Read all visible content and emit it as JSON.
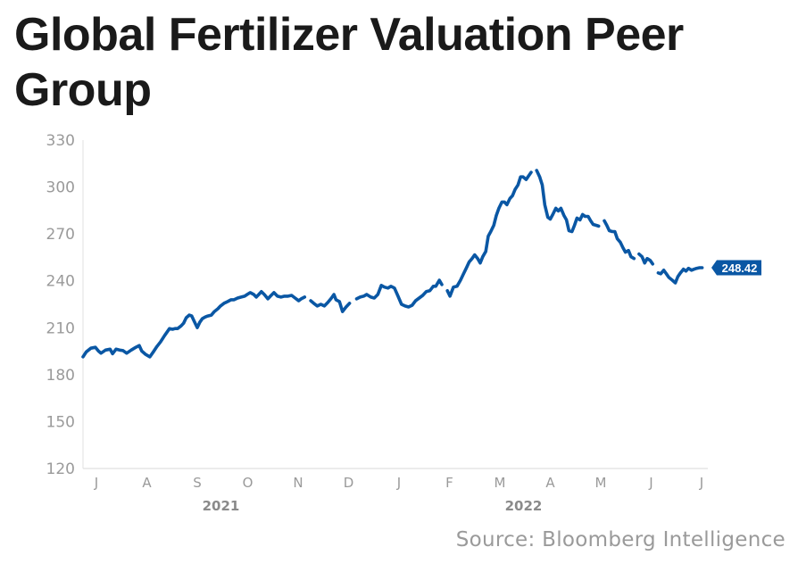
{
  "title": "Global Fertilizer Valuation Peer Group",
  "source": "Source: Bloomberg Intelligence",
  "colors": {
    "line": "#0a57a4",
    "axis": "#e0e0e0",
    "tick_text": "#9a9a9a",
    "title": "#1a1a1a"
  },
  "chart_data": {
    "type": "line",
    "title": "Global Fertilizer Valuation Peer Group",
    "xlabel": "",
    "ylabel": "",
    "ylim": [
      120,
      330
    ],
    "yticks": [
      120,
      150,
      180,
      210,
      240,
      270,
      300,
      330
    ],
    "x_tick_labels": [
      "J",
      "A",
      "S",
      "O",
      "N",
      "D",
      "J",
      "F",
      "M",
      "A",
      "M",
      "J",
      "J"
    ],
    "x_year_labels": [
      {
        "label": "2021",
        "under_tick_index": 3
      },
      {
        "label": "2022",
        "under_tick_index": 9
      }
    ],
    "grid": false,
    "last_value_label": "248.42",
    "last_value": 248.42,
    "x_range_months": [
      0,
      12.5
    ],
    "series": [
      {
        "name": "Global Fertilizer Valuation Peer Group",
        "x_month_index": [
          -0.27,
          -0.2,
          -0.11,
          -0.02,
          0.04,
          0.09,
          0.18,
          0.27,
          0.32,
          0.39,
          0.46,
          0.53,
          0.6,
          0.69,
          0.78,
          0.85,
          0.9,
          0.97,
          1.06,
          1.13,
          1.2,
          1.27,
          1.35,
          1.4,
          1.45,
          1.51,
          1.56,
          1.61,
          1.68,
          1.73,
          1.78,
          1.84,
          1.89,
          1.94,
          2.0,
          2.05,
          2.1,
          2.16,
          2.21,
          2.28,
          2.34,
          2.41,
          2.46,
          2.53,
          2.6,
          2.67,
          2.73,
          2.8,
          2.87,
          2.94,
          2.99,
          3.05,
          3.12,
          3.17,
          3.22,
          3.27,
          3.33,
          3.4,
          3.45,
          3.52,
          3.59,
          3.66,
          3.73,
          3.8,
          3.87,
          3.94,
          4.01,
          4.06,
          4.13,
          4.18,
          4.25,
          4.31,
          4.38,
          4.45,
          4.52,
          4.59,
          4.66,
          4.71,
          4.75,
          4.82,
          4.88,
          4.95,
          5.02,
          5.09,
          5.16,
          5.23,
          5.3,
          5.36,
          5.44,
          5.51,
          5.58,
          5.65,
          5.71,
          5.78,
          5.84,
          5.91,
          5.98,
          6.05,
          6.12,
          6.19,
          6.26,
          6.33,
          6.4,
          6.47,
          6.54,
          6.61,
          6.68,
          6.73,
          6.8,
          6.85,
          6.9,
          6.96,
          7.01,
          7.08,
          7.15,
          7.22,
          7.27,
          7.34,
          7.39,
          7.45,
          7.5,
          7.56,
          7.61,
          7.66,
          7.72,
          7.77,
          7.82,
          7.88,
          7.93,
          7.98,
          8.04,
          8.09,
          8.14,
          8.2,
          8.25,
          8.3,
          8.36,
          8.41,
          8.46,
          8.52,
          8.57,
          8.62,
          8.68,
          8.73,
          8.79,
          8.84,
          8.89,
          8.95,
          9.0,
          9.05,
          9.11,
          9.16,
          9.21,
          9.27,
          9.32,
          9.37,
          9.43,
          9.48,
          9.53,
          9.59,
          9.64,
          9.69,
          9.75,
          9.8,
          9.85,
          9.91,
          9.96,
          10.01,
          10.07,
          10.12,
          10.17,
          10.23,
          10.28,
          10.33,
          10.39,
          10.44,
          10.49,
          10.55,
          10.6,
          10.66,
          10.71,
          10.76,
          10.82,
          10.87,
          10.92,
          10.98,
          11.03,
          11.08,
          11.14,
          11.19,
          11.25,
          11.3,
          11.35,
          11.42,
          11.48,
          11.53,
          11.58,
          11.64,
          11.69,
          11.74,
          11.8,
          11.85,
          11.9,
          11.96,
          12.01,
          12.06,
          12.12,
          12.17,
          12.22,
          12.26
        ],
        "values": [
          191.4,
          194.6,
          196.9,
          197.5,
          195.1,
          193.7,
          195.7,
          196.3,
          193.4,
          196.3,
          195.7,
          195.4,
          193.7,
          195.7,
          197.5,
          198.6,
          195.1,
          193.1,
          191.4,
          194.6,
          198.0,
          200.9,
          204.9,
          207.2,
          209.5,
          209.0,
          209.5,
          209.5,
          211.2,
          212.9,
          216.4,
          218.1,
          217.5,
          214.1,
          210.1,
          213.5,
          215.8,
          216.9,
          217.5,
          218.1,
          220.4,
          222.2,
          223.9,
          225.6,
          226.7,
          227.9,
          227.9,
          229.0,
          229.6,
          230.2,
          231.3,
          232.5,
          231.3,
          229.6,
          231.3,
          233.1,
          231.3,
          228.5,
          230.2,
          232.5,
          230.2,
          229.6,
          230.2,
          230.2,
          230.7,
          229.0,
          227.3,
          228.5,
          229.6,
          null,
          227.3,
          225.6,
          223.9,
          225.0,
          223.9,
          226.2,
          229.0,
          231.3,
          227.9,
          226.7,
          220.4,
          223.3,
          225.6,
          null,
          228.5,
          229.6,
          230.2,
          231.3,
          229.6,
          229.0,
          231.3,
          237.1,
          236.0,
          235.4,
          236.5,
          235.4,
          230.2,
          225.0,
          223.9,
          223.3,
          224.4,
          227.3,
          229.0,
          230.7,
          233.1,
          233.7,
          236.5,
          236.5,
          240.4,
          237.6,
          null,
          233.7,
          230.2,
          236.0,
          236.5,
          240.4,
          243.9,
          248.5,
          252.0,
          254.3,
          256.6,
          254.3,
          251.4,
          255.4,
          258.8,
          268.6,
          271.5,
          275.5,
          281.8,
          286.4,
          290.4,
          290.4,
          288.7,
          292.7,
          294.4,
          298.4,
          301.3,
          306.5,
          306.5,
          304.8,
          307.1,
          309.4,
          null,
          310.6,
          306.5,
          301.3,
          288.7,
          280.7,
          279.5,
          282.4,
          286.4,
          284.7,
          286.4,
          281.8,
          279.0,
          272.1,
          271.5,
          275.5,
          280.1,
          279.0,
          282.4,
          281.2,
          281.2,
          278.4,
          276.1,
          275.5,
          275.0,
          null,
          278.4,
          275.5,
          272.1,
          271.5,
          271.5,
          266.9,
          264.6,
          261.2,
          258.3,
          259.4,
          255.4,
          254.3,
          null,
          257.1,
          255.4,
          251.4,
          254.3,
          253.1,
          250.8,
          null,
          245.1,
          244.5,
          246.8,
          244.5,
          242.2,
          240.4,
          238.7,
          242.7,
          245.1,
          247.4,
          246.2,
          248.0,
          246.8,
          247.4,
          248.0,
          248.4,
          248.42
        ]
      }
    ]
  }
}
